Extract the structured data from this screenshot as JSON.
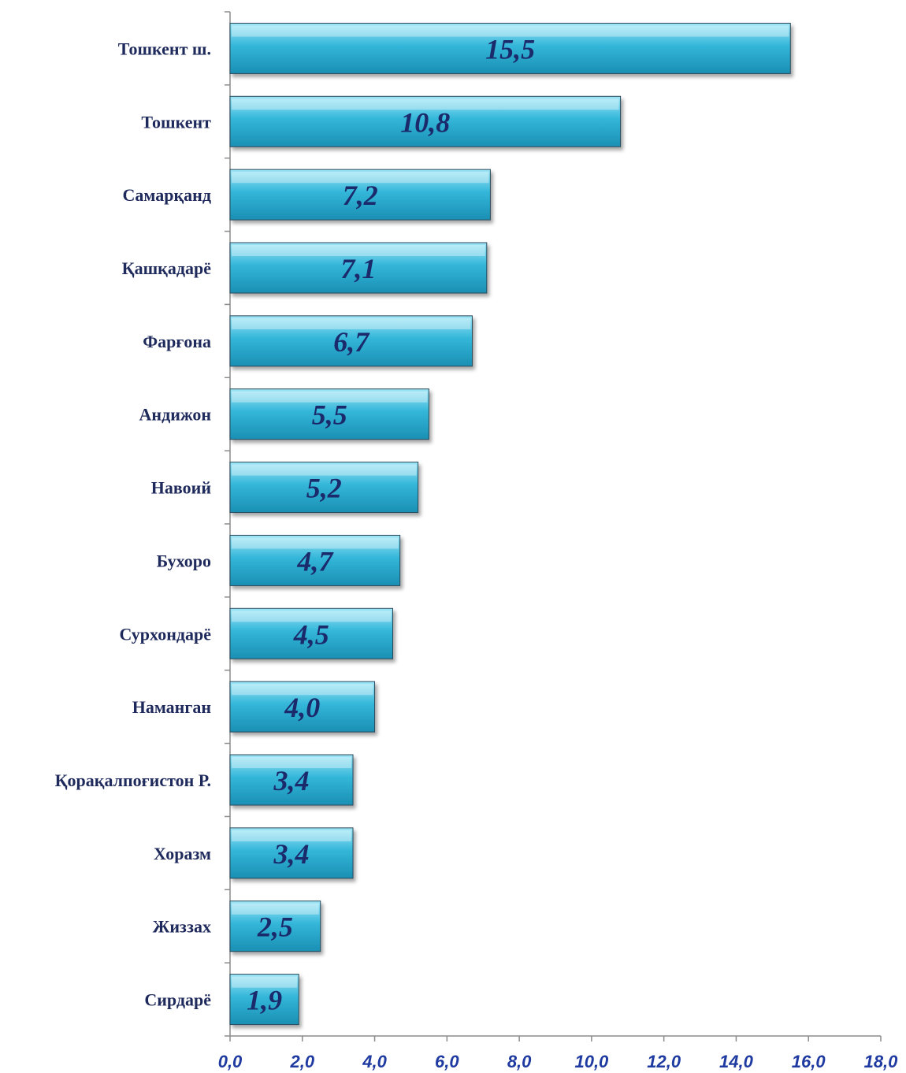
{
  "chart_data": {
    "type": "bar",
    "orientation": "horizontal",
    "categories": [
      "Тошкент ш.",
      "Тошкент",
      "Самарқанд",
      "Қашқадарё",
      "Фарғона",
      "Андижон",
      "Навоий",
      "Бухоро",
      "Сурхондарё",
      "Наманган",
      "Қорақалпоғистон Р.",
      "Хоразм",
      "Жиззах",
      "Сирдарё"
    ],
    "values": [
      15.5,
      10.8,
      7.2,
      7.1,
      6.7,
      5.5,
      5.2,
      4.7,
      4.5,
      4.0,
      3.4,
      3.4,
      2.5,
      1.9
    ],
    "value_labels": [
      "15,5",
      "10,8",
      "7,2",
      "7,1",
      "6,7",
      "5,5",
      "5,2",
      "4,7",
      "4,5",
      "4,0",
      "3,4",
      "3,4",
      "2,5",
      "1,9"
    ],
    "xlim": [
      0,
      18
    ],
    "xticks": [
      0,
      2,
      4,
      6,
      8,
      10,
      12,
      14,
      16,
      18
    ],
    "xtick_labels": [
      "0,0",
      "2,0",
      "4,0",
      "6,0",
      "8,0",
      "10,0",
      "12,0",
      "14,0",
      "16,0",
      "18,0"
    ],
    "title": "",
    "xlabel": "",
    "ylabel": "",
    "grid": false,
    "legend": "none",
    "colors": {
      "bar_fill": "#33b6d9",
      "bar_highlight": "#9ee6f7",
      "bar_dark": "#1a8fb3",
      "bar_edge": "#2a4a5a",
      "category_text": "#1f2a5c",
      "value_text": "#1b2a6b",
      "tick_text": "#1f3aa0"
    }
  }
}
